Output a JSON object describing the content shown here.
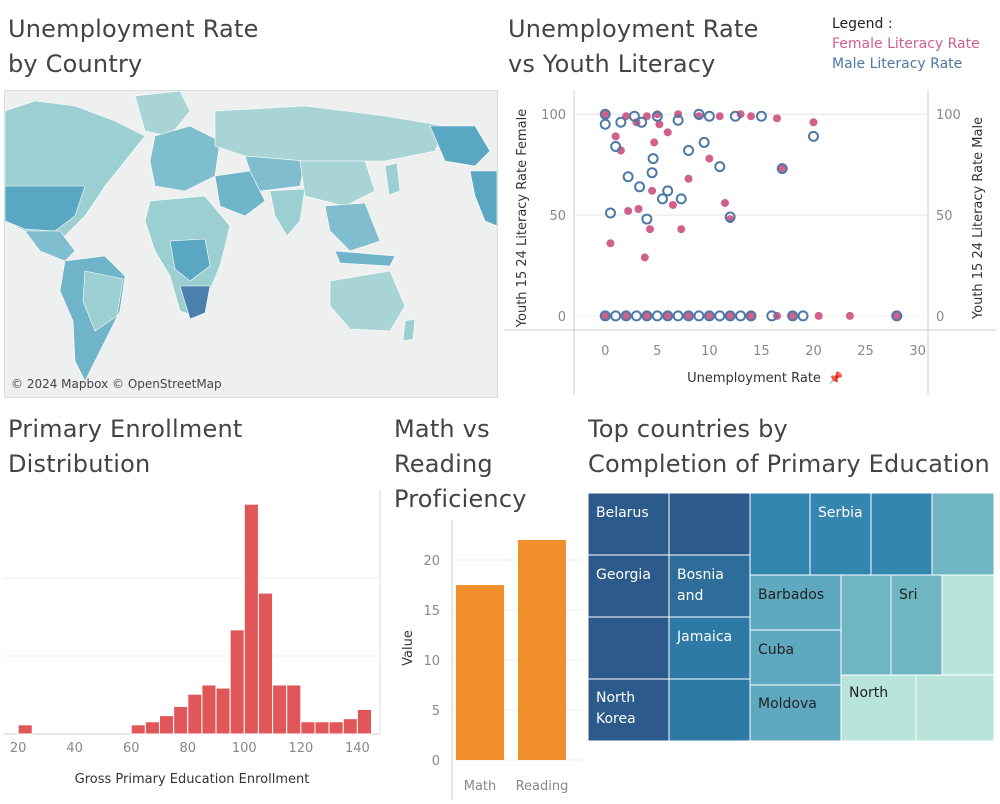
{
  "titles": {
    "map": [
      "Unemployment Rate",
      "by Country"
    ],
    "scatter": [
      "Unemployment Rate",
      "vs Youth Literacy"
    ],
    "hist": [
      "Primary Enrollment",
      "Distribution"
    ],
    "bar": [
      "Math vs",
      "Reading",
      "Proficiency"
    ],
    "treemap": [
      "Top countries by",
      "Completion of Primary Education"
    ]
  },
  "map": {
    "attribution": "© 2024 Mapbox © OpenStreetMap"
  },
  "legend": {
    "title": "Legend :",
    "female": "Female Literacy Rate",
    "male": "Male Literacy Rate",
    "female_color": "#d1608c",
    "male_color": "#4e79a7"
  },
  "chart_data": [
    {
      "type": "scatter",
      "xlabel": "Unemployment Rate",
      "ylabel_left": "Youth 15 24 Literacy Rate Female",
      "ylabel_right": "Youth 15 24 Literacy Rate Male",
      "xlim": [
        -3,
        31
      ],
      "ylim": [
        -7,
        112
      ],
      "x_ticks": [
        0,
        5,
        10,
        15,
        20,
        25,
        30
      ],
      "y_ticks": [
        0,
        50,
        100
      ],
      "series": [
        {
          "name": "Female Literacy Rate",
          "color": "#d1608c",
          "points": [
            [
              0,
              100
            ],
            [
              0.5,
              36
            ],
            [
              1,
              89
            ],
            [
              1.5,
              82
            ],
            [
              2,
              99
            ],
            [
              2.2,
              52
            ],
            [
              3,
              96
            ],
            [
              3.2,
              53
            ],
            [
              3.8,
              29
            ],
            [
              4,
              99
            ],
            [
              4.3,
              43
            ],
            [
              4.5,
              62
            ],
            [
              4.7,
              86
            ],
            [
              5,
              100
            ],
            [
              5.2,
              95
            ],
            [
              6,
              91
            ],
            [
              6.5,
              55
            ],
            [
              7,
              100
            ],
            [
              7.3,
              43
            ],
            [
              8,
              68
            ],
            [
              9,
              99
            ],
            [
              10,
              78
            ],
            [
              11,
              99
            ],
            [
              11.5,
              56
            ],
            [
              12,
              48
            ],
            [
              13,
              100
            ],
            [
              14,
              99
            ],
            [
              16.5,
              98
            ],
            [
              17,
              73
            ],
            [
              20,
              96
            ],
            [
              0,
              0
            ],
            [
              2,
              0
            ],
            [
              4,
              0
            ],
            [
              6,
              0
            ],
            [
              8,
              0
            ],
            [
              10,
              0
            ],
            [
              12,
              0
            ],
            [
              14,
              0
            ],
            [
              16.5,
              0
            ],
            [
              18,
              0
            ],
            [
              20.5,
              0
            ],
            [
              23.5,
              0
            ],
            [
              28,
              0
            ]
          ]
        },
        {
          "name": "Male Literacy Rate",
          "color": "#4e79a7",
          "points": [
            [
              0,
              100
            ],
            [
              0,
              95
            ],
            [
              0.5,
              51
            ],
            [
              1,
              84
            ],
            [
              1.5,
              96
            ],
            [
              2.2,
              69
            ],
            [
              2.8,
              99
            ],
            [
              3.3,
              64
            ],
            [
              3.5,
              96
            ],
            [
              4,
              48
            ],
            [
              4.5,
              71
            ],
            [
              4.6,
              78
            ],
            [
              5,
              99
            ],
            [
              5.5,
              58
            ],
            [
              6,
              62
            ],
            [
              7,
              97
            ],
            [
              7.3,
              58
            ],
            [
              8,
              82
            ],
            [
              9,
              100
            ],
            [
              9.5,
              86
            ],
            [
              10,
              99
            ],
            [
              11,
              74
            ],
            [
              12,
              49
            ],
            [
              12.5,
              99
            ],
            [
              15,
              99
            ],
            [
              17,
              73
            ],
            [
              20,
              89
            ],
            [
              0,
              0
            ],
            [
              1,
              0
            ],
            [
              2,
              0
            ],
            [
              3,
              0
            ],
            [
              4,
              0
            ],
            [
              5,
              0
            ],
            [
              6,
              0
            ],
            [
              7,
              0
            ],
            [
              8,
              0
            ],
            [
              9,
              0
            ],
            [
              10,
              0
            ],
            [
              11,
              0
            ],
            [
              12,
              0
            ],
            [
              13,
              0
            ],
            [
              14,
              0
            ],
            [
              16,
              0
            ],
            [
              18,
              0
            ],
            [
              19,
              0
            ],
            [
              28,
              0
            ]
          ]
        }
      ]
    },
    {
      "type": "bar",
      "xlabel": "Gross Primary Education Enrollment",
      "ylabel": "",
      "x_ticks": [
        20,
        40,
        60,
        80,
        100,
        120,
        140
      ],
      "xlim": [
        15,
        148
      ],
      "bin_width": 5,
      "bins": [
        [
          22.5,
          3
        ],
        [
          62.5,
          3
        ],
        [
          67.5,
          4
        ],
        [
          72.5,
          6
        ],
        [
          77.5,
          9
        ],
        [
          82.5,
          13
        ],
        [
          87.5,
          16
        ],
        [
          92.5,
          15
        ],
        [
          97.5,
          34
        ],
        [
          102.5,
          75
        ],
        [
          107.5,
          46
        ],
        [
          112.5,
          16
        ],
        [
          117.5,
          16
        ],
        [
          122.5,
          4
        ],
        [
          127.5,
          4
        ],
        [
          132.5,
          4
        ],
        [
          137.5,
          5
        ],
        [
          142.5,
          8
        ]
      ],
      "color": "#e15759"
    },
    {
      "type": "bar",
      "categories": [
        "Math",
        "Reading"
      ],
      "values": [
        17.5,
        22
      ],
      "ylabel": "Value",
      "ylim": [
        -1,
        24
      ],
      "y_ticks": [
        0,
        5,
        10,
        15,
        20
      ],
      "color": "#f28e2b"
    }
  ],
  "treemap": {
    "labels": [
      "Belarus",
      "Georgia",
      "North Korea",
      "Bosnia and",
      "Jamaica",
      "Serbia",
      "Barbados",
      "Cuba",
      "Moldova",
      "Sri",
      "North"
    ]
  }
}
